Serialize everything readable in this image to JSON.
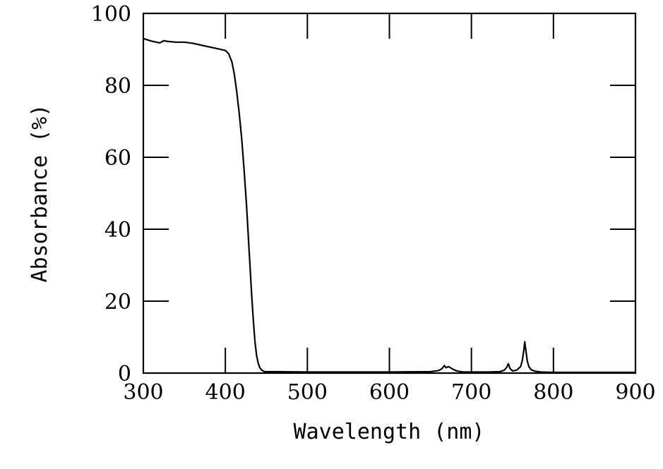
{
  "chart_data": {
    "type": "line",
    "title": "",
    "xlabel": "Wavelength (nm)",
    "ylabel": "Absorbance (%)",
    "xlim": [
      300,
      900
    ],
    "ylim": [
      0,
      100
    ],
    "x_ticks": [
      300,
      400,
      500,
      600,
      700,
      800,
      900
    ],
    "y_ticks": [
      0,
      20,
      40,
      60,
      80,
      100
    ],
    "x_tick_labels": [
      "300",
      "400",
      "500",
      "600",
      "700",
      "800",
      "900"
    ],
    "y_tick_labels": [
      "0",
      "20",
      "40",
      "60",
      "80",
      "100"
    ],
    "grid": false,
    "legend": "none",
    "line_color": "#000000",
    "series": [
      {
        "x": [
          300,
          310,
          320,
          325,
          330,
          340,
          350,
          360,
          370,
          380,
          390,
          400,
          404,
          408,
          411,
          414,
          417,
          420,
          423,
          426,
          428,
          430,
          432,
          434,
          436,
          438,
          440,
          442,
          444,
          446,
          448,
          450,
          452,
          460,
          500,
          550,
          600,
          650,
          660,
          664,
          667,
          669,
          672,
          675,
          678,
          682,
          690,
          700,
          720,
          735,
          740,
          743,
          745,
          747,
          750,
          755,
          760,
          762,
          764,
          765,
          766,
          768,
          770,
          773,
          778,
          785,
          800,
          810,
          850,
          900
        ],
        "y": [
          93.0,
          92.3,
          91.8,
          92.4,
          92.2,
          92.0,
          92.0,
          91.7,
          91.2,
          90.7,
          90.2,
          89.7,
          88.8,
          86.5,
          83.0,
          78.0,
          72.0,
          65.0,
          56.0,
          46.0,
          38.0,
          30.0,
          22.0,
          15.0,
          9.0,
          5.0,
          2.8,
          1.5,
          0.9,
          0.6,
          0.4,
          0.4,
          0.4,
          0.4,
          0.3,
          0.3,
          0.3,
          0.4,
          0.7,
          1.2,
          2.1,
          1.5,
          1.8,
          1.4,
          1.0,
          0.6,
          0.3,
          0.3,
          0.3,
          0.4,
          0.8,
          1.6,
          2.6,
          1.3,
          0.6,
          0.8,
          1.8,
          3.5,
          6.5,
          8.7,
          7.0,
          3.5,
          1.8,
          0.9,
          0.5,
          0.3,
          0.2,
          0.2,
          0.2,
          0.2
        ]
      }
    ]
  }
}
